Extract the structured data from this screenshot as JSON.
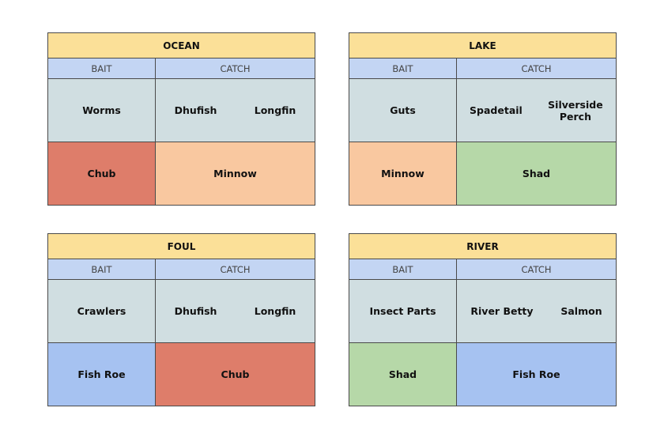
{
  "headers": {
    "bait": "BAIT",
    "catch": "CATCH"
  },
  "panels": [
    {
      "title": "OCEAN",
      "bait": "Worms",
      "catch": [
        "Dhufish",
        "Longfin"
      ],
      "bottom_bait": "Chub",
      "bottom_catch": "Minnow",
      "bottom_bait_color": "#de7d6a",
      "bottom_catch_color": "#f9c8a0"
    },
    {
      "title": "LAKE",
      "bait": "Guts",
      "catch": [
        "Spadetail",
        "Silverside Perch"
      ],
      "bottom_bait": "Minnow",
      "bottom_catch": "Shad",
      "bottom_bait_color": "#f9c8a0",
      "bottom_catch_color": "#b6d8a8"
    },
    {
      "title": "FOUL",
      "bait": "Crawlers",
      "catch": [
        "Dhufish",
        "Longfin"
      ],
      "bottom_bait": "Fish Roe",
      "bottom_catch": "Chub",
      "bottom_bait_color": "#a6c2f1",
      "bottom_catch_color": "#de7d6a"
    },
    {
      "title": "RIVER",
      "bait": "Insect Parts",
      "catch": [
        "River Betty",
        "Salmon"
      ],
      "bottom_bait": "Shad",
      "bottom_catch": "Fish Roe",
      "bottom_bait_color": "#b6d8a8",
      "bottom_catch_color": "#a6c2f1"
    }
  ]
}
